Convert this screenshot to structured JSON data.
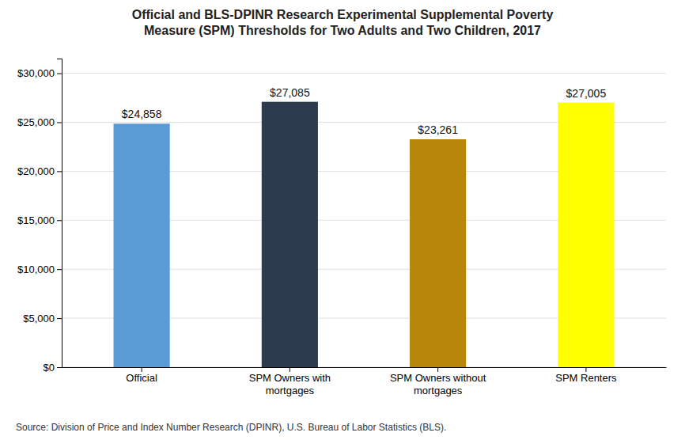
{
  "chart_data": {
    "type": "bar",
    "title": "Official and BLS-DPINR Research Experimental Supplemental Poverty\nMeasure (SPM) Thresholds for Two Adults and Two Children, 2017",
    "categories": [
      "Official",
      "SPM Owners with\nmortgages",
      "SPM Owners without\nmortgages",
      "SPM Renters"
    ],
    "values": [
      24858,
      27085,
      23261,
      27005
    ],
    "value_labels": [
      "$24,858",
      "$27,085",
      "$23,261",
      "$27,005"
    ],
    "data_labels": true,
    "colors": [
      "#5B9BD5",
      "#2E3A4E",
      "#B8860B",
      "#FFFF00"
    ],
    "ylim": [
      0,
      31500
    ],
    "yticks": [
      {
        "value": 0,
        "label": "$0"
      },
      {
        "value": 5000,
        "label": "$5,000"
      },
      {
        "value": 10000,
        "label": "$10,000"
      },
      {
        "value": 15000,
        "label": "$15,000"
      },
      {
        "value": 20000,
        "label": "$20,000"
      },
      {
        "value": 25000,
        "label": "$25,000"
      },
      {
        "value": 30000,
        "label": "$30,000"
      }
    ],
    "grid": true,
    "annotations": [
      "Source: Division of Price and Index Number Research (DPINR), U.S. Bureau of Labor Statistics (BLS)."
    ]
  }
}
